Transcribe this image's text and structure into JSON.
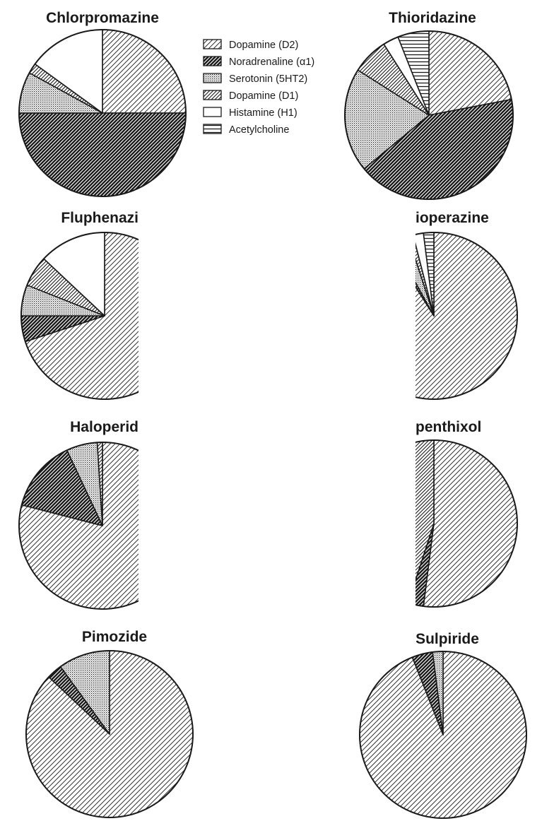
{
  "legend": {
    "items": [
      {
        "label": "Dopamine (D2)",
        "pattern": "hatch-light"
      },
      {
        "label": "Noradrenaline (α1)",
        "pattern": "hatch-dark"
      },
      {
        "label": "Serotonin (5HT2)",
        "pattern": "dots"
      },
      {
        "label": "Dopamine (D1)",
        "pattern": "hatch-medium"
      },
      {
        "label": "Histamine (H1)",
        "pattern": "blank"
      },
      {
        "label": "Acetylcholine",
        "pattern": "hlines"
      }
    ]
  },
  "colors": {
    "ink": "#1a1a1a",
    "background": "#ffffff"
  },
  "chart_data": [
    {
      "type": "pie",
      "title": "Chlorpromazine",
      "start_angle_deg": 0,
      "direction": "clockwise",
      "slices": [
        {
          "label": "Dopamine (D2)",
          "value": 25
        },
        {
          "label": "Noradrenaline (α1)",
          "value": 50
        },
        {
          "label": "Serotonin (5HT2)",
          "value": 8
        },
        {
          "label": "Dopamine (D1)",
          "value": 2
        },
        {
          "label": "Histamine (H1)",
          "value": 15
        }
      ]
    },
    {
      "type": "pie",
      "title": "Thioridazine",
      "start_angle_deg": 0,
      "direction": "clockwise",
      "slices": [
        {
          "label": "Dopamine (D2)",
          "value": 22
        },
        {
          "label": "Noradrenaline (α1)",
          "value": 42
        },
        {
          "label": "Serotonin (5HT2)",
          "value": 20
        },
        {
          "label": "Dopamine (D1)",
          "value": 7
        },
        {
          "label": "Histamine (H1)",
          "value": 3
        },
        {
          "label": "Acetylcholine",
          "value": 6
        }
      ]
    },
    {
      "type": "pie",
      "title": "Fluphenazi",
      "start_angle_deg": 0,
      "direction": "clockwise",
      "slices": [
        {
          "label": "Dopamine (D2)",
          "value": 70
        },
        {
          "label": "Noradrenaline (α1)",
          "value": 5
        },
        {
          "label": "Serotonin (5HT2)",
          "value": 6
        },
        {
          "label": "Dopamine (D1)",
          "value": 6
        },
        {
          "label": "Histamine (H1)",
          "value": 13
        }
      ]
    },
    {
      "type": "pie",
      "title": "ioperazine",
      "start_angle_deg": 0,
      "direction": "clockwise",
      "slices": [
        {
          "label": "Dopamine (D2)",
          "value": 91
        },
        {
          "label": "Noradrenaline (α1)",
          "value": 1
        },
        {
          "label": "Serotonin (5HT2)",
          "value": 3
        },
        {
          "label": "Dopamine (D1)",
          "value": 1
        },
        {
          "label": "Histamine (H1)",
          "value": 2
        },
        {
          "label": "Acetylcholine",
          "value": 2
        }
      ]
    },
    {
      "type": "pie",
      "title": "Haloperid",
      "start_angle_deg": 0,
      "direction": "clockwise",
      "slices": [
        {
          "label": "Dopamine (D2)",
          "value": 79
        },
        {
          "label": "Noradrenaline (α1)",
          "value": 14
        },
        {
          "label": "Serotonin (5HT2)",
          "value": 6
        },
        {
          "label": "Dopamine (D1)",
          "value": 1
        }
      ]
    },
    {
      "type": "pie",
      "title": "penthixol",
      "start_angle_deg": 0,
      "direction": "clockwise",
      "slices": [
        {
          "label": "Dopamine (D2)",
          "value": 52
        },
        {
          "label": "Noradrenaline (α1)",
          "value": 3
        },
        {
          "label": "Dopamine (D1)",
          "value": 45
        }
      ]
    },
    {
      "type": "pie",
      "title": "Pimozide",
      "start_angle_deg": 0,
      "direction": "clockwise",
      "slices": [
        {
          "label": "Dopamine (D2)",
          "value": 87
        },
        {
          "label": "Noradrenaline (α1)",
          "value": 3
        },
        {
          "label": "Serotonin (5HT2)",
          "value": 10
        }
      ]
    },
    {
      "type": "pie",
      "title": "Sulpiride",
      "start_angle_deg": 0,
      "direction": "clockwise",
      "slices": [
        {
          "label": "Dopamine (D2)",
          "value": 94
        },
        {
          "label": "Noradrenaline (α1)",
          "value": 4
        },
        {
          "label": "Serotonin (5HT2)",
          "value": 2
        }
      ]
    }
  ]
}
